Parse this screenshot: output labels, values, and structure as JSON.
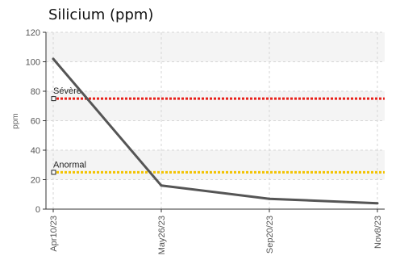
{
  "chart_data": {
    "type": "line",
    "title": "Silicium (ppm)",
    "xlabel": "",
    "ylabel": "ppm",
    "categories": [
      "Apr10/23",
      "May26/23",
      "Sep20/23",
      "Nov8/23"
    ],
    "y_ticks": [
      "0",
      "20",
      "40",
      "60",
      "80",
      "100",
      "120"
    ],
    "ylim": [
      0,
      120
    ],
    "grid": true,
    "series": [
      {
        "values": [
          102,
          16,
          7,
          4
        ]
      }
    ],
    "thresholds": [
      {
        "label": "Sévère",
        "value": 75
      },
      {
        "label": "Anormal",
        "value": 25
      }
    ]
  },
  "colors": {
    "series_line": "#555555",
    "severe_line": "#e8201a",
    "abnormal_line": "#f2c200",
    "grid": "#d6d6d6",
    "band": "#f4f4f4",
    "axis": "#333333"
  }
}
